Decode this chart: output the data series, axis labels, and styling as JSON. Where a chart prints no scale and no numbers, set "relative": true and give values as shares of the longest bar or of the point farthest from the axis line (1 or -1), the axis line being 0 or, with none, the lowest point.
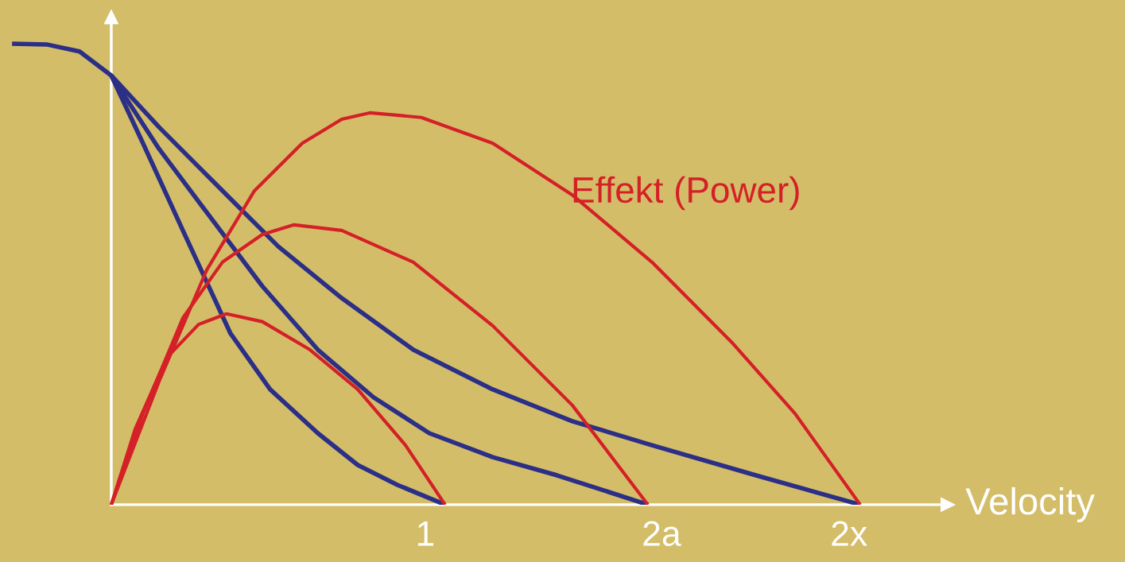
{
  "chart_data": {
    "type": "line",
    "relative": true,
    "xlabel": "Velocity",
    "xlim": [
      -0.329,
      2.684
    ],
    "xticks": [
      1,
      {
        "value": 1.752,
        "label": "2a"
      },
      {
        "value": 2.349,
        "label": "2x"
      }
    ],
    "grid": false,
    "legend": false,
    "marker": "none",
    "line_style": "solid",
    "annotations": [
      "Effekt (Power)"
    ],
    "series": [
      {
        "color": "#2b2f86",
        "x": [
          0,
          0.101,
          0.228,
          0.38,
          0.506,
          0.658,
          0.785,
          0.911,
          1.063
        ],
        "values": [
          0.931,
          0.784,
          0.595,
          0.371,
          0.25,
          0.155,
          0.086,
          0.043,
          0
        ]
      },
      {
        "color": "#2b2f86",
        "x": [
          0,
          0.152,
          0.304,
          0.481,
          0.658,
          0.835,
          1.013,
          1.215,
          1.418,
          1.709
        ],
        "values": [
          0.931,
          0.772,
          0.634,
          0.474,
          0.336,
          0.233,
          0.155,
          0.103,
          0.064,
          0
        ]
      },
      {
        "color": "#2b2f86",
        "x": [
          -0.316,
          -0.203,
          -0.101,
          0,
          0.152,
          0.329,
          0.532,
          0.734,
          0.962,
          1.215,
          1.468,
          1.722,
          2.051,
          2.385
        ],
        "values": [
          1.0,
          0.998,
          0.983,
          0.931,
          0.819,
          0.698,
          0.56,
          0.448,
          0.336,
          0.25,
          0.181,
          0.129,
          0.064,
          0
        ]
      },
      {
        "color": "#d42027",
        "x": [
          0,
          0.076,
          0.177,
          0.278,
          0.367,
          0.481,
          0.633,
          0.785,
          0.937,
          1.063
        ],
        "values": [
          0,
          0.164,
          0.319,
          0.391,
          0.414,
          0.397,
          0.336,
          0.25,
          0.129,
          0
        ]
      },
      {
        "color": "#d42027",
        "x": [
          0,
          0.101,
          0.228,
          0.354,
          0.481,
          0.582,
          0.734,
          0.962,
          1.215,
          1.468,
          1.709
        ],
        "values": [
          0,
          0.198,
          0.405,
          0.526,
          0.586,
          0.607,
          0.595,
          0.526,
          0.388,
          0.216,
          0
        ]
      },
      {
        "color": "#d42027",
        "x": [
          0,
          0.152,
          0.304,
          0.456,
          0.608,
          0.734,
          0.823,
          0.987,
          1.215,
          1.468,
          1.722,
          1.975,
          2.177,
          2.385
        ],
        "values": [
          0,
          0.267,
          0.509,
          0.681,
          0.784,
          0.836,
          0.85,
          0.84,
          0.784,
          0.672,
          0.526,
          0.353,
          0.198,
          0
        ]
      }
    ]
  }
}
